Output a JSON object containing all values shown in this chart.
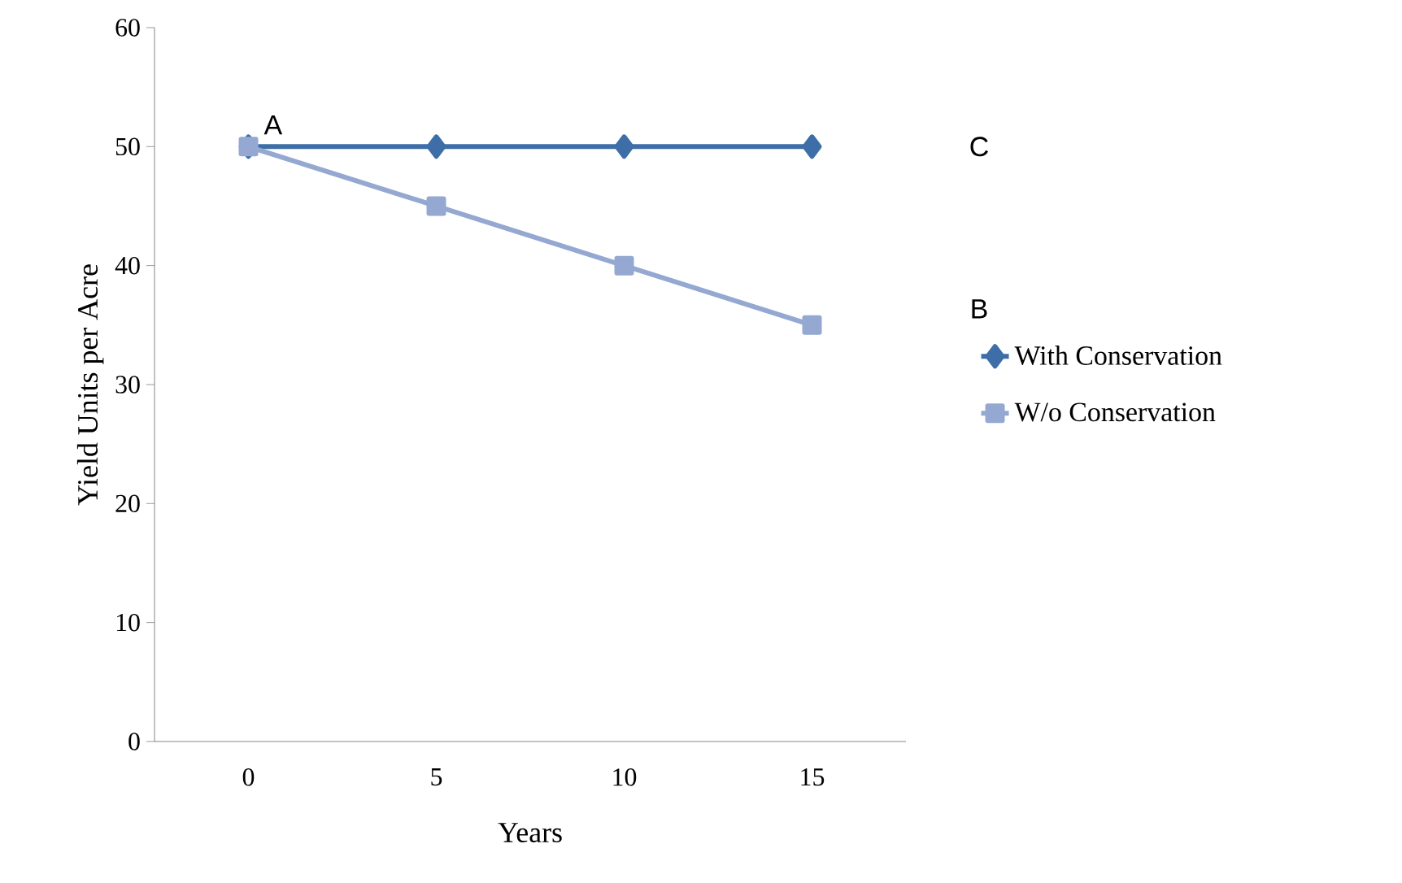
{
  "chart_data": {
    "type": "line",
    "xlabel": "Years",
    "ylabel": "Yield Units per Acre",
    "categories": [
      "0",
      "5",
      "10",
      "15"
    ],
    "series": [
      {
        "name": "With Conservation",
        "color": "#3e6ea8",
        "marker": "diamond",
        "values": [
          50,
          50,
          50,
          50
        ]
      },
      {
        "name": "W/o Conservation",
        "color": "#94a8d2",
        "marker": "square",
        "values": [
          50,
          45,
          40,
          35
        ]
      }
    ],
    "ylim": [
      0,
      60
    ],
    "yticks": [
      0,
      10,
      20,
      30,
      40,
      50,
      60
    ],
    "grid": false,
    "legend": "right",
    "line_style": "solid",
    "annotations": [
      {
        "text": "A",
        "x": "0",
        "y": 50
      },
      "C",
      "B"
    ]
  }
}
